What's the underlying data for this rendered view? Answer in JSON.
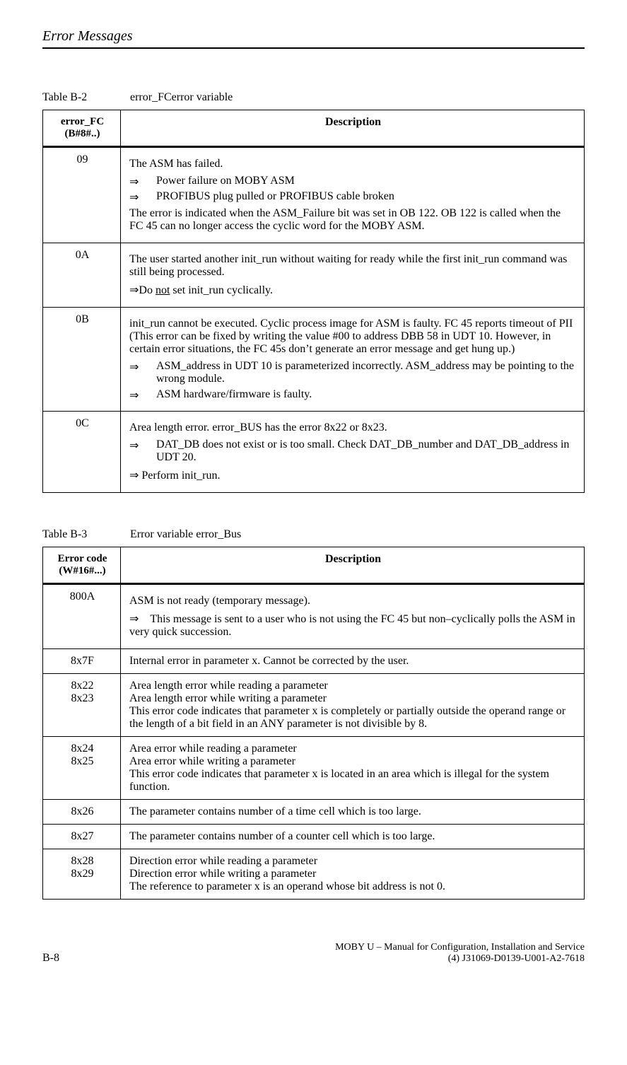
{
  "header": {
    "title": "Error Messages"
  },
  "table1": {
    "caption_num": "Table B-2",
    "caption_text": "error_FCerror variable",
    "col0_header_l1": "error_FC",
    "col0_header_l2": "(B#8#..)",
    "col1_header": "Description",
    "rows": {
      "r09": {
        "code": "09",
        "p1": "The ASM has failed.",
        "b1": "Power failure on MOBY ASM",
        "b2": "PROFIBUS plug pulled or PROFIBUS cable broken",
        "p2": "The error is indicated when the ASM_Failure bit was set in OB 122. OB 122 is called when the FC 45 can no longer access the cyclic word for the MOBY ASM."
      },
      "r0A": {
        "code": "0A",
        "p1": "The user started another init_run without waiting for ready while the first init_run command was still being processed.",
        "p2a": "Do ",
        "p2u": "not",
        "p2b": " set init_run cyclically."
      },
      "r0B": {
        "code": "0B",
        "p1": "init_run cannot be executed. Cyclic process image for ASM is faulty. FC 45 reports timeout of PII (This error can be fixed by writing the value #00 to address DBB 58 in UDT 10. However, in certain error situations, the FC 45s don’t generate an error message and get hung up.)",
        "b1": "ASM_address in UDT 10 is parameterized incorrectly. ASM_address may be pointing to the wrong module.",
        "b2": "ASM hardware/firmware is faulty."
      },
      "r0C": {
        "code": "0C",
        "p1": "Area length error. error_BUS has the error 8x22 or 8x23.",
        "b1": "DAT_DB does not exist or is too small. Check DAT_DB_number and DAT_DB_address in UDT 20.",
        "p2": " Perform  init_run."
      }
    }
  },
  "table2": {
    "caption_num": "Table B-3",
    "caption_text": "Error variable error_Bus",
    "col0_header_l1": "Error code",
    "col0_header_l2": "(W#16#...)",
    "col1_header": "Description",
    "rows": {
      "r800A": {
        "code": "800A",
        "p1": "ASM is not ready (temporary message).",
        "b1": "This message is sent to a user who is not using the FC 45 but non–cyclically polls the ASM in very quick succession."
      },
      "r8x7F": {
        "code": "8x7F",
        "p1": "Internal error in parameter x. Cannot be corrected by the user."
      },
      "r8x22": {
        "code_l1": "8x22",
        "code_l2": "8x23",
        "l1": "Area length error while reading a parameter",
        "l2": "Area length error while writing a parameter",
        "l3": "This error code indicates that parameter x is completely or partially outside the operand range or the length of a bit field in an ANY parameter is not divisible by 8."
      },
      "r8x24": {
        "code_l1": "8x24",
        "code_l2": "8x25",
        "l1": "Area error while reading a parameter",
        "l2": "Area error while writing a parameter",
        "l3": "This error code indicates that parameter x is located in an area which is illegal for the system function."
      },
      "r8x26": {
        "code": "8x26",
        "p1": "The parameter contains number of a time cell which is too large."
      },
      "r8x27": {
        "code": "8x27",
        "p1": "The parameter contains number of a counter cell which is too large."
      },
      "r8x28": {
        "code_l1": "8x28",
        "code_l2": "8x29",
        "l1": "Direction error while reading a parameter",
        "l2": "Direction error while writing a parameter",
        "l3": "The reference to parameter x is an operand whose bit address is not 0."
      }
    }
  },
  "footer": {
    "left": "B-8",
    "right_l1": "MOBY U – Manual for Configuration, Installation and Service",
    "right_l2": "(4) J31069-D0139-U001-A2-7618"
  },
  "glyphs": {
    "arrow": "⇒"
  }
}
